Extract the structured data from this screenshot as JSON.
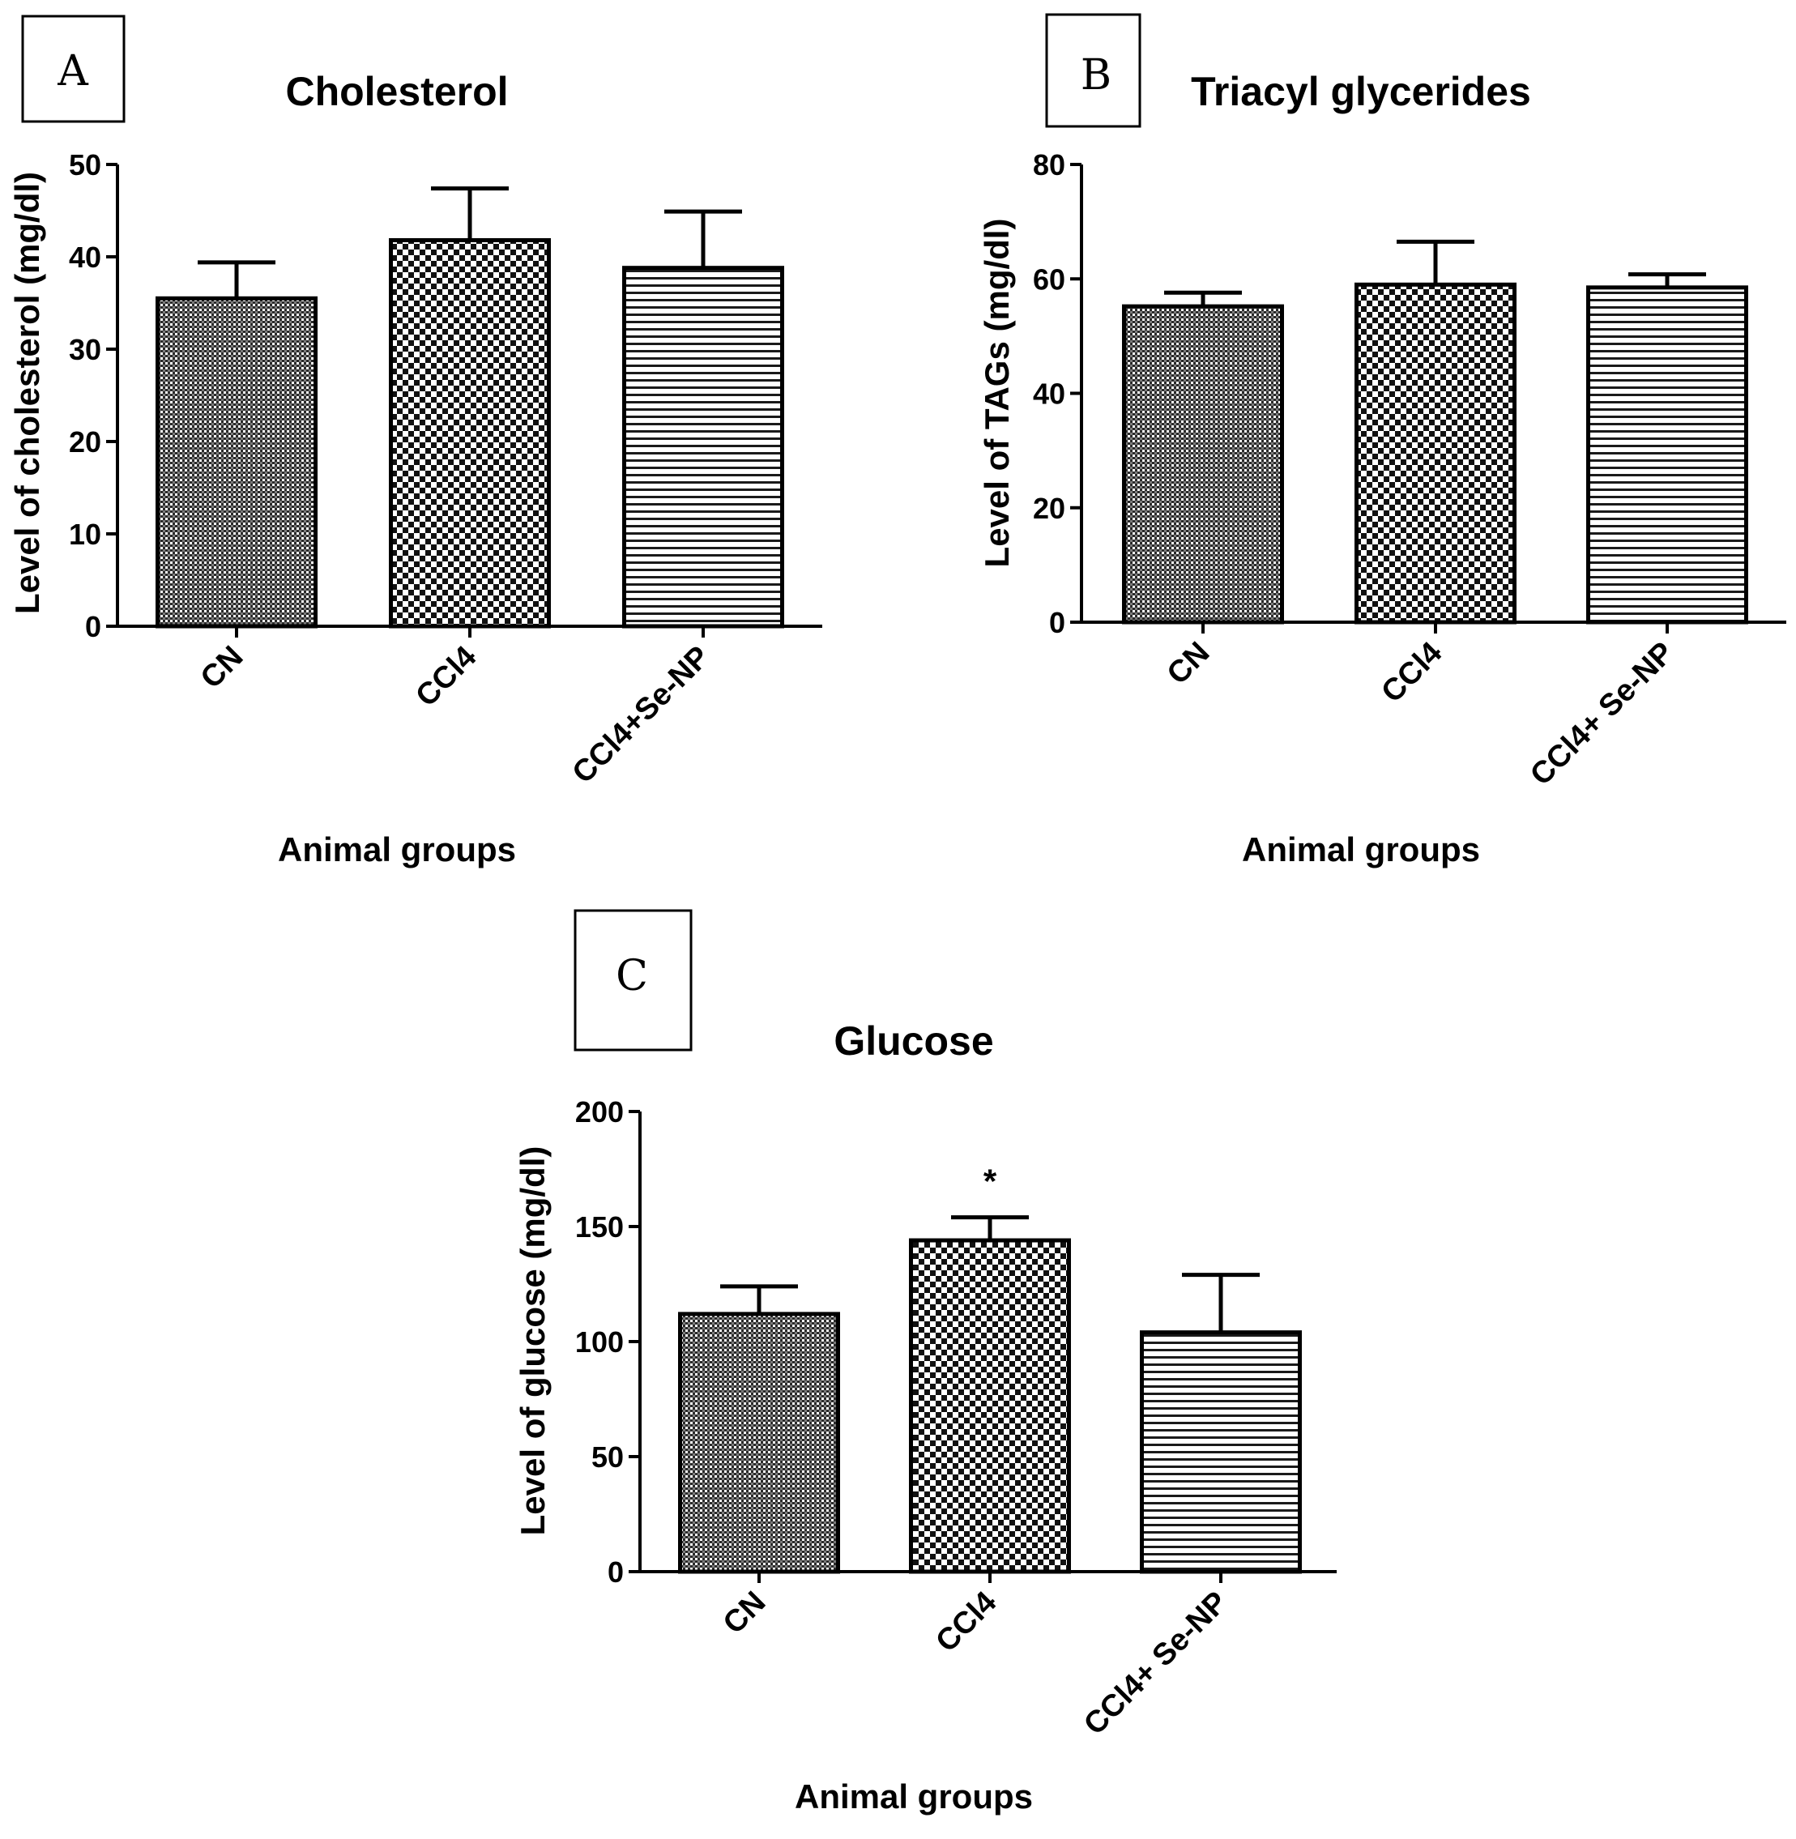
{
  "chart_data": [
    {
      "type": "bar",
      "panel": "A",
      "title": "Cholesterol",
      "xlabel": "Animal groups",
      "ylabel": "Level of cholesterol (mg/dl)",
      "categories": [
        "CN",
        "CCl4",
        "CCl4+Se-NP"
      ],
      "values": [
        35.5,
        41.8,
        38.8
      ],
      "errors": [
        3.9,
        5.6,
        6.1
      ],
      "ylim": [
        0,
        50
      ],
      "yticks": [
        0,
        10,
        20,
        30,
        40,
        50
      ],
      "ytick_labels": [
        "0",
        "10",
        "20",
        "30",
        "40",
        "50"
      ],
      "significance": [
        "",
        "",
        ""
      ]
    },
    {
      "type": "bar",
      "panel": "B",
      "title": "Triacyl glycerides",
      "xlabel": "Animal groups",
      "ylabel": "Level of TAGs (mg/dl)",
      "categories": [
        "CN",
        "CCl4",
        "CCl4+ Se-NP"
      ],
      "values": [
        55.2,
        59.0,
        58.5
      ],
      "errors": [
        2.4,
        7.5,
        2.3
      ],
      "ylim": [
        0,
        80
      ],
      "yticks": [
        0,
        20,
        40,
        60,
        80
      ],
      "ytick_labels": [
        "0",
        "20",
        "40",
        "60",
        "80"
      ],
      "significance": [
        "",
        "",
        ""
      ]
    },
    {
      "type": "bar",
      "panel": "C",
      "title": "Glucose",
      "xlabel": "Animal groups",
      "ylabel": "Level of glucose (mg/dl)",
      "categories": [
        "CN",
        "CCl4",
        "CCl4+ Se-NP"
      ],
      "values": [
        112,
        144,
        104
      ],
      "errors": [
        12,
        10,
        25
      ],
      "ylim": [
        0,
        200
      ],
      "yticks": [
        0,
        50,
        100,
        150,
        200
      ],
      "ytick_labels": [
        "0",
        "50",
        "100",
        "150",
        "200"
      ],
      "significance": [
        "",
        "*",
        ""
      ]
    }
  ]
}
